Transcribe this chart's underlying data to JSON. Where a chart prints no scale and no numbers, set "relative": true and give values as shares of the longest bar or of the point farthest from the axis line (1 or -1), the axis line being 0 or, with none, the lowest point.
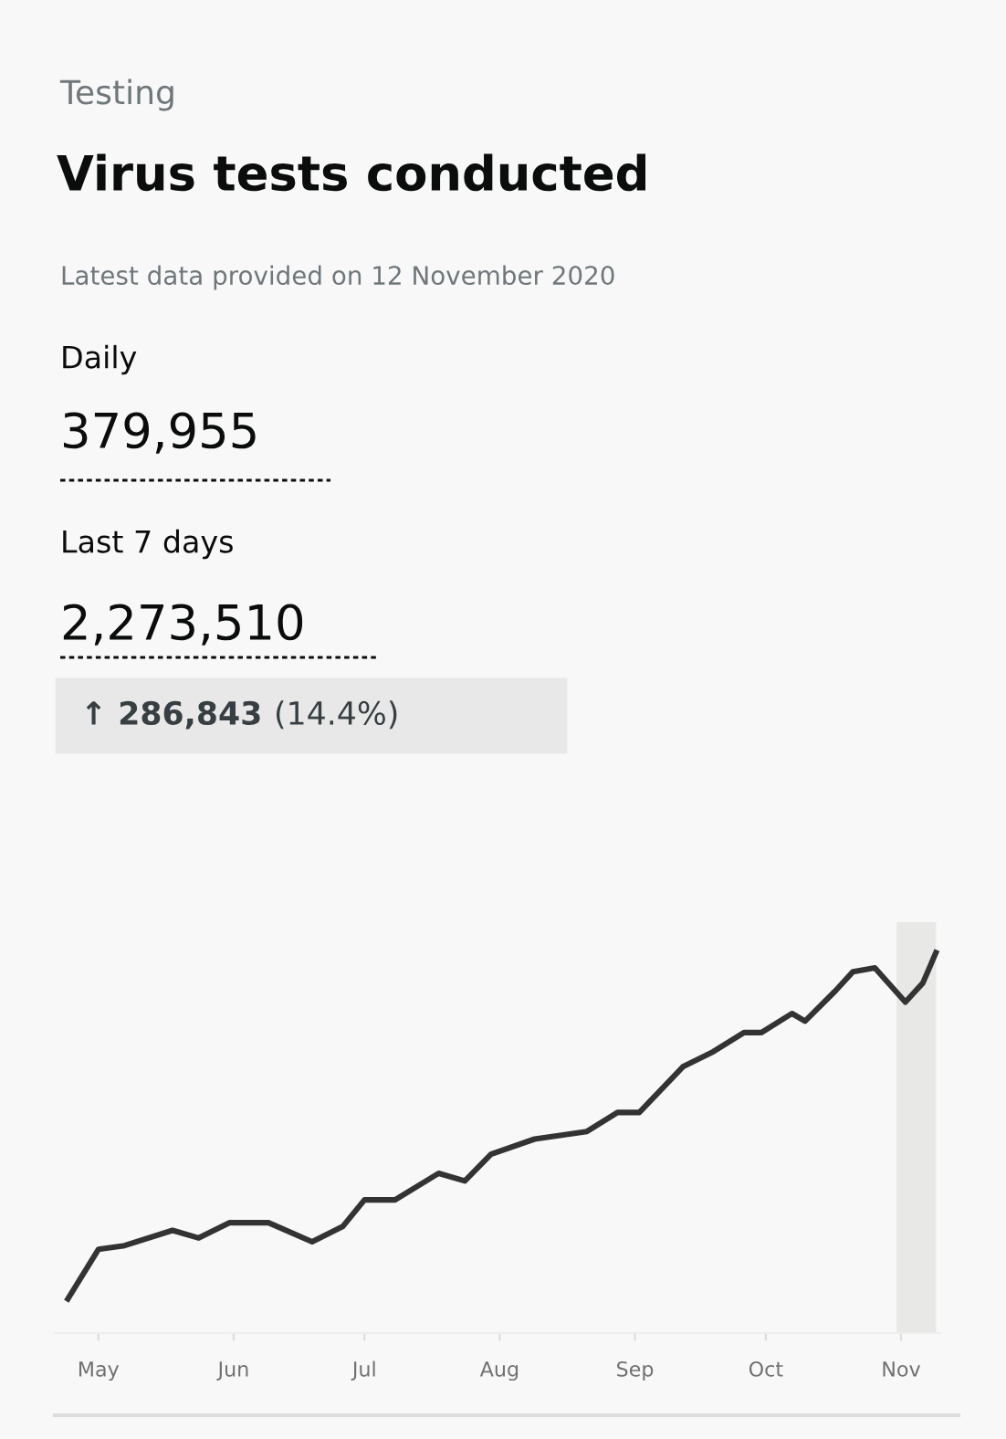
{
  "chart_data": {
    "type": "line",
    "title": "Virus tests conducted",
    "subtitle": "Latest data provided on 12 November 2020",
    "annotations": [
      "Testing",
      "Daily",
      "379,955",
      "Last 7 days",
      "2,273,510",
      "↑ 286,843",
      "(14.4%)"
    ],
    "x": [
      "2020-04-24",
      "2020-05-01",
      "2020-05-07",
      "2020-05-18",
      "2020-05-24",
      "2020-05-31",
      "2020-06-09",
      "2020-06-19",
      "2020-06-26",
      "2020-07-01",
      "2020-07-08",
      "2020-07-18",
      "2020-07-24",
      "2020-07-30",
      "2020-08-09",
      "2020-08-21",
      "2020-08-28",
      "2020-09-02",
      "2020-09-12",
      "2020-09-19",
      "2020-09-26",
      "2020-09-30",
      "2020-10-07",
      "2020-10-10",
      "2020-10-17",
      "2020-10-21",
      "2020-10-26",
      "2020-11-02",
      "2020-11-06",
      "2020-11-09"
    ],
    "series": [
      {
        "color": "#333333",
        "values": [
          0.09,
          0.22,
          0.23,
          0.27,
          0.25,
          0.29,
          0.29,
          0.24,
          0.28,
          0.35,
          0.35,
          0.42,
          0.4,
          0.47,
          0.51,
          0.53,
          0.58,
          0.58,
          0.7,
          0.74,
          0.79,
          0.79,
          0.84,
          0.82,
          0.9,
          0.95,
          0.96,
          0.87,
          0.92,
          1.0
        ]
      }
    ],
    "relative": true,
    "xlim": [
      "2020-04-21",
      "2020-11-10"
    ],
    "xticks": [
      {
        "value": "2020-05-01",
        "label": "May"
      },
      {
        "value": "2020-06-01",
        "label": "Jun"
      },
      {
        "value": "2020-07-01",
        "label": "Jul"
      },
      {
        "value": "2020-08-01",
        "label": "Aug"
      },
      {
        "value": "2020-09-01",
        "label": "Sep"
      },
      {
        "value": "2020-10-01",
        "label": "Oct"
      },
      {
        "value": "2020-11-01",
        "label": "Nov"
      }
    ],
    "bands": [
      {
        "axis": "x",
        "from": "2020-10-31",
        "to": "2020-11-09",
        "color": "#e8e8e6"
      }
    ],
    "line_style": "solid",
    "marker": "none",
    "grid": false,
    "legend": false
  }
}
